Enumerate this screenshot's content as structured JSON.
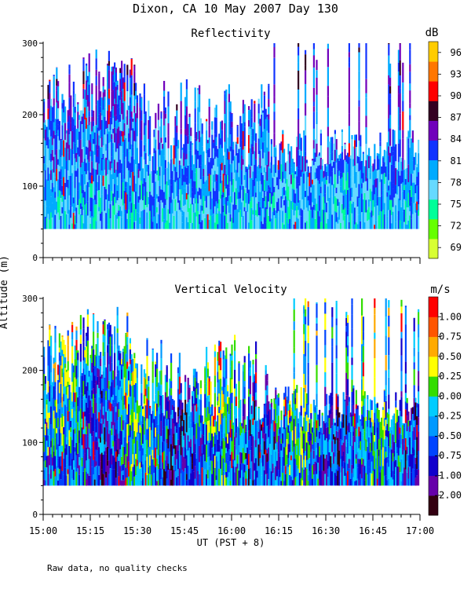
{
  "figure": {
    "title": "Dixon, CA 10 May 2007  Day 130",
    "ylabel": "Altitude (m)",
    "xlabel": "UT  (PST + 8)",
    "footnote": "Raw data, no quality checks",
    "x_tick_labels": [
      "15:00",
      "15:15",
      "15:30",
      "15:45",
      "16:00",
      "16:15",
      "16:30",
      "16:45",
      "17:00"
    ]
  },
  "chart_data": [
    {
      "type": "heatmap",
      "title": "Reflectivity",
      "variable": "reflectivity",
      "xlabel": "UT  (PST + 8)",
      "ylabel": "Altitude (m)",
      "xlim": [
        "15:00",
        "17:00"
      ],
      "ylim": [
        0,
        300
      ],
      "y_ticks": [
        0,
        100,
        200,
        300
      ],
      "colorbar": {
        "unit": "dB",
        "range": [
          67.5,
          97.5
        ],
        "tick_values": [
          69,
          72,
          75,
          78,
          81,
          84,
          87,
          90,
          93,
          96
        ],
        "tick_labels": [
          "69",
          "72",
          "75",
          "78",
          "81",
          "84",
          "87",
          "90",
          "93",
          "96"
        ],
        "colors": [
          "#d8ff33",
          "#66ff00",
          "#00ff99",
          "#66d9ff",
          "#00aaff",
          "#1133ff",
          "#7000bb",
          "#330022",
          "#ff0000",
          "#ff7700",
          "#ffcc00"
        ]
      },
      "data_coverage": {
        "min_altitude_m": 40,
        "typical_top_m": [
          120,
          260
        ],
        "max_altitude_m": 300
      }
    },
    {
      "type": "heatmap",
      "title": "Vertical Velocity",
      "variable": "vertical_velocity",
      "xlabel": "UT  (PST + 8)",
      "ylabel": "Altitude (m)",
      "xlim": [
        "15:00",
        "17:00"
      ],
      "ylim": [
        0,
        300
      ],
      "y_ticks": [
        0,
        100,
        200,
        300
      ],
      "colorbar": {
        "unit": "m/s",
        "range": [
          -2.0,
          1.2
        ],
        "tick_values": [
          1.0,
          0.75,
          0.5,
          0.25,
          0.0,
          -0.25,
          -0.5,
          -0.75,
          -1.0,
          -2.0
        ],
        "tick_labels": [
          "1.00",
          "0.75",
          "0.50",
          "0.25",
          "0.00",
          "-0.25",
          "-0.50",
          "-0.75",
          "-1.00",
          "-2.00"
        ],
        "colors": [
          "#330011",
          "#6600aa",
          "#1100cc",
          "#0044ff",
          "#0099ff",
          "#00ccff",
          "#33dd00",
          "#ffff00",
          "#ffaa00",
          "#ff5500",
          "#ff0000"
        ]
      },
      "data_coverage": {
        "min_altitude_m": 40,
        "typical_top_m": [
          120,
          260
        ],
        "max_altitude_m": 300
      }
    }
  ]
}
